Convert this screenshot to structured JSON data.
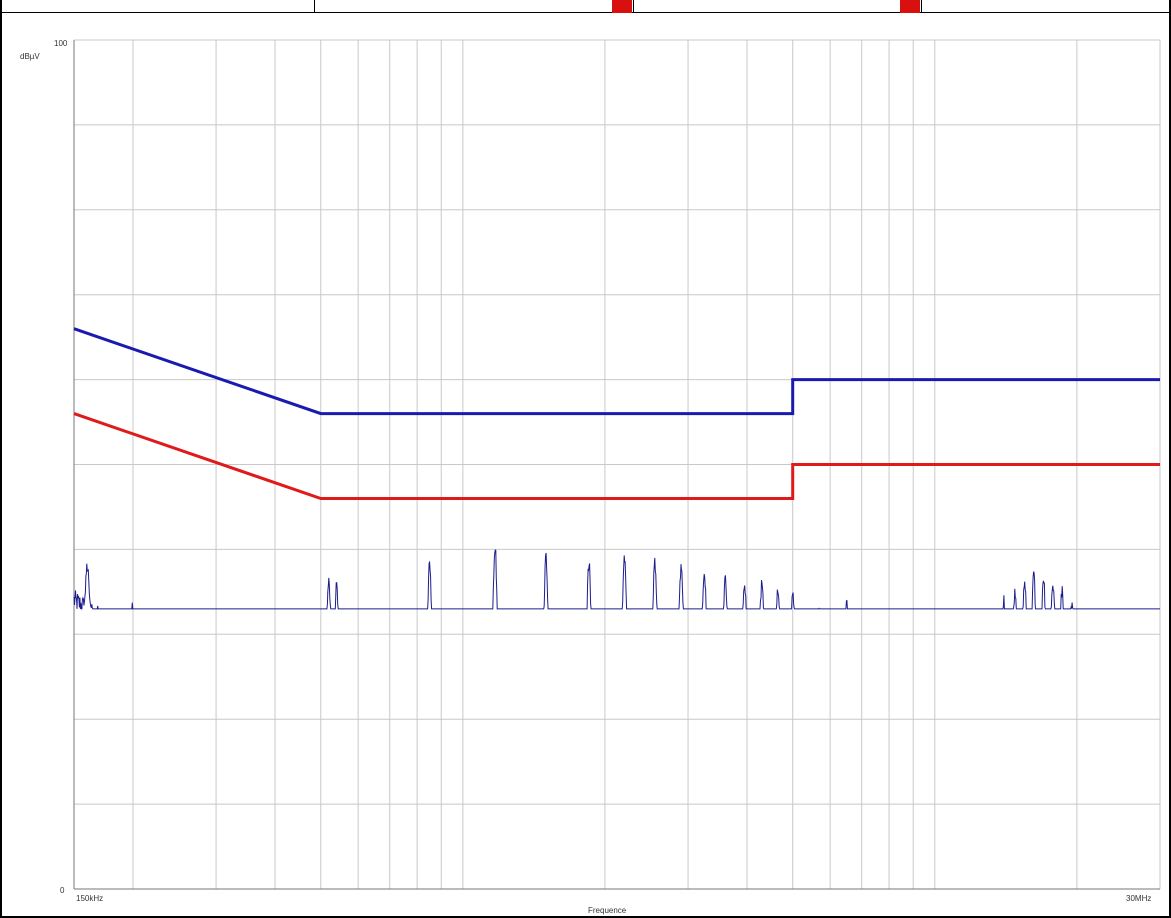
{
  "colors": {
    "limit_quasi_peak": "#1a1ab0",
    "limit_average": "#e01a1a",
    "trace": "#1c1c8c",
    "grid": "#c8c8c8",
    "header_marker": "#d81010"
  },
  "chart_data": {
    "type": "line",
    "title": "",
    "xlabel": "Frequence",
    "ylabel": "dBµV",
    "x_scale": "log",
    "xlim": [
      0.15,
      30
    ],
    "ylim": [
      0,
      100
    ],
    "y_tick_labels": [
      "100",
      "0"
    ],
    "x_tick_labels": [
      "150kHz",
      "30MHz"
    ],
    "grid": true,
    "series": [
      {
        "key": "limit_qp",
        "style": "limit",
        "points": [
          [
            0.15,
            66
          ],
          [
            0.5,
            56
          ],
          [
            5,
            56
          ],
          [
            5,
            60
          ],
          [
            30,
            60
          ]
        ]
      },
      {
        "key": "limit_avg",
        "style": "limit",
        "points": [
          [
            0.15,
            56
          ],
          [
            0.5,
            46
          ],
          [
            5,
            46
          ],
          [
            5,
            50
          ],
          [
            30,
            50
          ]
        ]
      },
      {
        "key": "measurement",
        "style": "trace",
        "baseline": [
          [
            0.15,
            34
          ],
          [
            0.2,
            29.5
          ],
          [
            0.3,
            28.5
          ],
          [
            0.45,
            27.5
          ],
          [
            0.5,
            27
          ],
          [
            0.6,
            27.5
          ],
          [
            1,
            28.5
          ],
          [
            2,
            29
          ],
          [
            5,
            29
          ],
          [
            10,
            28.5
          ],
          [
            20,
            28.5
          ],
          [
            30,
            28
          ]
        ],
        "peaks": [
          [
            0.16,
            38
          ],
          [
            0.2,
            33.5
          ],
          [
            0.21,
            32.5
          ],
          [
            0.27,
            31.5
          ],
          [
            0.38,
            29.5
          ],
          [
            0.52,
            36.5
          ],
          [
            0.54,
            35.5
          ],
          [
            0.85,
            38.5
          ],
          [
            1.17,
            40.5
          ],
          [
            1.5,
            39
          ],
          [
            1.85,
            38.5
          ],
          [
            2.2,
            39
          ],
          [
            2.55,
            38.5
          ],
          [
            2.9,
            38
          ],
          [
            3.25,
            37
          ],
          [
            3.6,
            36.5
          ],
          [
            3.95,
            36
          ],
          [
            4.3,
            36
          ],
          [
            4.65,
            35
          ],
          [
            5.0,
            34.5
          ],
          [
            5.35,
            32
          ],
          [
            5.7,
            32.5
          ],
          [
            6.1,
            33
          ],
          [
            6.5,
            33.5
          ],
          [
            7.0,
            31
          ],
          [
            7.5,
            31
          ],
          [
            8.0,
            30.5
          ],
          [
            9.0,
            30.5
          ],
          [
            11.0,
            31
          ],
          [
            14.0,
            34
          ],
          [
            14.8,
            35
          ],
          [
            15.5,
            36
          ],
          [
            16.2,
            37
          ],
          [
            17.0,
            36.5
          ],
          [
            17.8,
            36
          ],
          [
            18.6,
            35
          ],
          [
            19.5,
            33.5
          ],
          [
            21.0,
            32
          ]
        ]
      }
    ]
  }
}
